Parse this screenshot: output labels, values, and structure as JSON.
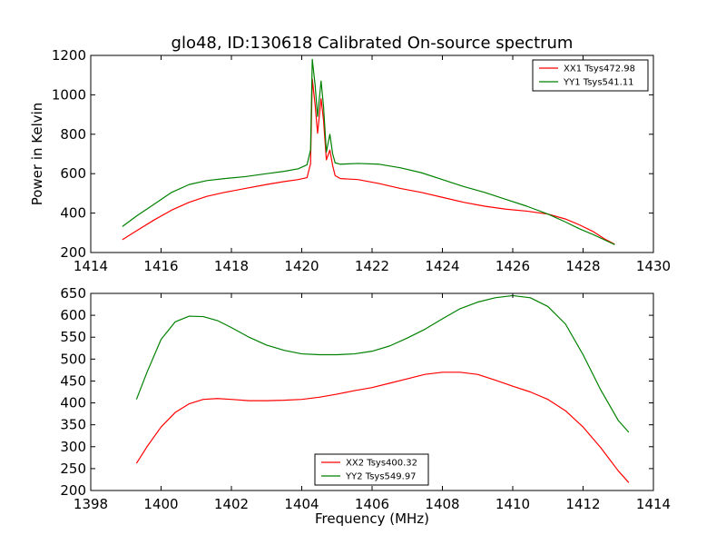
{
  "figure_title": "glo48, ID:130618 Calibrated On-source spectrum",
  "shared_xlabel": "Frequency (MHz)",
  "colors": {
    "xx": "#ff0000",
    "yy": "#008000"
  },
  "chart_data": [
    {
      "type": "line",
      "title": "glo48, ID:130618 Calibrated On-source spectrum",
      "xlabel": "",
      "ylabel": "Power in Kelvin",
      "xlim": [
        1414,
        1430
      ],
      "ylim": [
        200,
        1200
      ],
      "xticks": [
        1414,
        1416,
        1418,
        1420,
        1422,
        1424,
        1426,
        1428,
        1430
      ],
      "yticks": [
        200,
        400,
        600,
        800,
        1000,
        1200
      ],
      "grid": false,
      "legend_position": "top-right",
      "series": [
        {
          "name": "XX1 Tsys472.98",
          "color": "#ff0000",
          "x": [
            1414.9,
            1415.3,
            1415.8,
            1416.3,
            1416.8,
            1417.3,
            1417.8,
            1418.4,
            1419.0,
            1419.5,
            1419.9,
            1420.15,
            1420.25,
            1420.3,
            1420.38,
            1420.45,
            1420.55,
            1420.62,
            1420.7,
            1420.8,
            1420.88,
            1420.95,
            1421.1,
            1421.6,
            1422.2,
            1422.8,
            1423.4,
            1424.0,
            1424.6,
            1425.2,
            1425.8,
            1426.4,
            1427.0,
            1427.5,
            1427.9,
            1428.3,
            1428.6,
            1428.9
          ],
          "y": [
            265,
            310,
            365,
            415,
            455,
            485,
            505,
            525,
            545,
            560,
            570,
            580,
            650,
            1080,
            950,
            805,
            980,
            870,
            670,
            720,
            640,
            590,
            575,
            570,
            550,
            525,
            505,
            480,
            455,
            435,
            420,
            410,
            395,
            370,
            340,
            305,
            270,
            242
          ]
        },
        {
          "name": "YY1 Tsys541.11",
          "color": "#008000",
          "x": [
            1414.9,
            1415.3,
            1415.8,
            1416.3,
            1416.8,
            1417.3,
            1417.8,
            1418.4,
            1419.0,
            1419.5,
            1419.9,
            1420.15,
            1420.25,
            1420.3,
            1420.38,
            1420.45,
            1420.55,
            1420.62,
            1420.7,
            1420.8,
            1420.88,
            1420.95,
            1421.1,
            1421.6,
            1422.2,
            1422.8,
            1423.4,
            1424.0,
            1424.6,
            1425.2,
            1425.8,
            1426.4,
            1427.0,
            1427.5,
            1427.9,
            1428.3,
            1428.6,
            1428.9
          ],
          "y": [
            332,
            385,
            445,
            505,
            545,
            565,
            575,
            585,
            600,
            612,
            625,
            645,
            720,
            1180,
            1050,
            890,
            1070,
            940,
            710,
            800,
            700,
            655,
            648,
            652,
            648,
            630,
            605,
            570,
            535,
            505,
            470,
            435,
            395,
            355,
            320,
            290,
            265,
            240
          ]
        }
      ]
    },
    {
      "type": "line",
      "title": "",
      "xlabel": "Frequency (MHz)",
      "ylabel": "",
      "xlim": [
        1398,
        1414
      ],
      "ylim": [
        200,
        650
      ],
      "xticks": [
        1398,
        1400,
        1402,
        1404,
        1406,
        1408,
        1410,
        1412,
        1414
      ],
      "yticks": [
        200,
        250,
        300,
        350,
        400,
        450,
        500,
        550,
        600,
        650
      ],
      "grid": false,
      "legend_position": "bottom-center",
      "series": [
        {
          "name": "XX2 Tsys400.32",
          "color": "#ff0000",
          "x": [
            1399.3,
            1399.6,
            1400.0,
            1400.4,
            1400.8,
            1401.2,
            1401.6,
            1402.0,
            1402.5,
            1403.0,
            1403.5,
            1404.0,
            1404.5,
            1405.0,
            1405.5,
            1406.0,
            1406.5,
            1407.0,
            1407.5,
            1408.0,
            1408.5,
            1409.0,
            1409.5,
            1410.0,
            1410.5,
            1411.0,
            1411.5,
            1412.0,
            1412.5,
            1413.0,
            1413.3
          ],
          "y": [
            262,
            300,
            345,
            378,
            398,
            408,
            410,
            408,
            405,
            405,
            406,
            408,
            413,
            420,
            428,
            435,
            445,
            455,
            465,
            470,
            470,
            465,
            452,
            438,
            425,
            408,
            382,
            345,
            298,
            245,
            218
          ]
        },
        {
          "name": "YY2 Tsys549.97",
          "color": "#008000",
          "x": [
            1399.3,
            1399.6,
            1400.0,
            1400.4,
            1400.8,
            1401.2,
            1401.6,
            1402.0,
            1402.5,
            1403.0,
            1403.5,
            1404.0,
            1404.5,
            1405.0,
            1405.5,
            1406.0,
            1406.5,
            1407.0,
            1407.5,
            1408.0,
            1408.5,
            1409.0,
            1409.5,
            1410.0,
            1410.5,
            1411.0,
            1411.5,
            1412.0,
            1412.5,
            1413.0,
            1413.3
          ],
          "y": [
            408,
            470,
            545,
            585,
            598,
            597,
            588,
            572,
            550,
            532,
            520,
            512,
            510,
            510,
            512,
            518,
            530,
            548,
            568,
            592,
            615,
            630,
            640,
            645,
            640,
            620,
            580,
            510,
            430,
            360,
            333
          ]
        }
      ]
    }
  ]
}
